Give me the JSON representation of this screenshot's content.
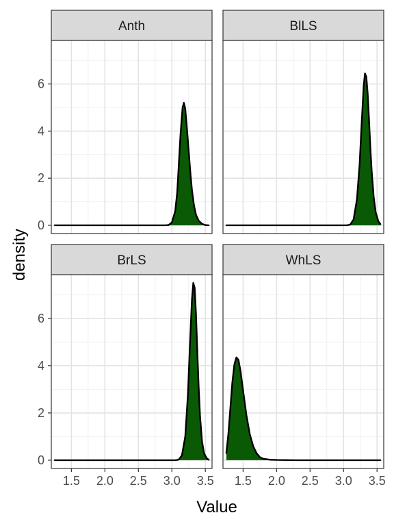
{
  "chart_data": {
    "type": "area",
    "xlabel": "Value",
    "ylabel": "density",
    "xlim": [
      1.2,
      3.6
    ],
    "ylim": [
      -0.35,
      7.85
    ],
    "x_ticks": [
      1.5,
      2.0,
      2.5,
      3.0,
      3.5
    ],
    "x_tick_labels": [
      "1.5",
      "2.0",
      "2.5",
      "3.0",
      "3.5"
    ],
    "y_ticks": [
      0,
      2,
      4,
      6
    ],
    "y_tick_labels": [
      "0",
      "2",
      "4",
      "6"
    ],
    "grid": true,
    "fill_color": "#0a5a05",
    "line_color": "#000000",
    "panels": [
      {
        "name": "Anth",
        "x_range": [
          1.25,
          3.55
        ],
        "points": [
          [
            1.25,
            0
          ],
          [
            2.9,
            0
          ],
          [
            2.95,
            0.01
          ],
          [
            3.0,
            0.12
          ],
          [
            3.05,
            0.6
          ],
          [
            3.08,
            1.4
          ],
          [
            3.1,
            2.4
          ],
          [
            3.13,
            3.9
          ],
          [
            3.16,
            5.0
          ],
          [
            3.18,
            5.2
          ],
          [
            3.2,
            4.95
          ],
          [
            3.22,
            4.3
          ],
          [
            3.25,
            3.2
          ],
          [
            3.28,
            2.1
          ],
          [
            3.3,
            1.5
          ],
          [
            3.33,
            0.85
          ],
          [
            3.36,
            0.45
          ],
          [
            3.4,
            0.2
          ],
          [
            3.45,
            0.06
          ],
          [
            3.5,
            0.01
          ],
          [
            3.55,
            0
          ]
        ]
      },
      {
        "name": "BlLS",
        "x_range": [
          1.25,
          3.55
        ],
        "points": [
          [
            1.25,
            0
          ],
          [
            3.05,
            0
          ],
          [
            3.1,
            0.03
          ],
          [
            3.15,
            0.25
          ],
          [
            3.2,
            1.1
          ],
          [
            3.24,
            2.6
          ],
          [
            3.27,
            4.3
          ],
          [
            3.3,
            5.9
          ],
          [
            3.32,
            6.45
          ],
          [
            3.34,
            6.3
          ],
          [
            3.36,
            5.6
          ],
          [
            3.38,
            4.5
          ],
          [
            3.4,
            3.3
          ],
          [
            3.42,
            2.3
          ],
          [
            3.45,
            1.2
          ],
          [
            3.48,
            0.55
          ],
          [
            3.52,
            0.17
          ],
          [
            3.55,
            0.05
          ]
        ]
      },
      {
        "name": "BrLS",
        "x_range": [
          1.25,
          3.55
        ],
        "points": [
          [
            1.25,
            0
          ],
          [
            3.05,
            0
          ],
          [
            3.1,
            0.02
          ],
          [
            3.15,
            0.2
          ],
          [
            3.2,
            1.0
          ],
          [
            3.24,
            2.8
          ],
          [
            3.27,
            4.9
          ],
          [
            3.3,
            6.8
          ],
          [
            3.32,
            7.5
          ],
          [
            3.34,
            7.3
          ],
          [
            3.36,
            6.2
          ],
          [
            3.38,
            4.6
          ],
          [
            3.4,
            3.1
          ],
          [
            3.42,
            1.9
          ],
          [
            3.45,
            0.8
          ],
          [
            3.48,
            0.3
          ],
          [
            3.52,
            0.08
          ],
          [
            3.55,
            0.02
          ]
        ]
      },
      {
        "name": "WhLS",
        "x_range": [
          1.25,
          3.55
        ],
        "points": [
          [
            1.25,
            0.3
          ],
          [
            1.28,
            1.1
          ],
          [
            1.31,
            2.2
          ],
          [
            1.34,
            3.3
          ],
          [
            1.37,
            4.05
          ],
          [
            1.4,
            4.35
          ],
          [
            1.43,
            4.25
          ],
          [
            1.46,
            3.8
          ],
          [
            1.5,
            2.95
          ],
          [
            1.55,
            1.9
          ],
          [
            1.6,
            1.1
          ],
          [
            1.65,
            0.6
          ],
          [
            1.7,
            0.3
          ],
          [
            1.75,
            0.13
          ],
          [
            1.8,
            0.06
          ],
          [
            1.9,
            0.02
          ],
          [
            2.0,
            0.01
          ],
          [
            2.3,
            0
          ],
          [
            3.55,
            0
          ]
        ]
      }
    ]
  }
}
